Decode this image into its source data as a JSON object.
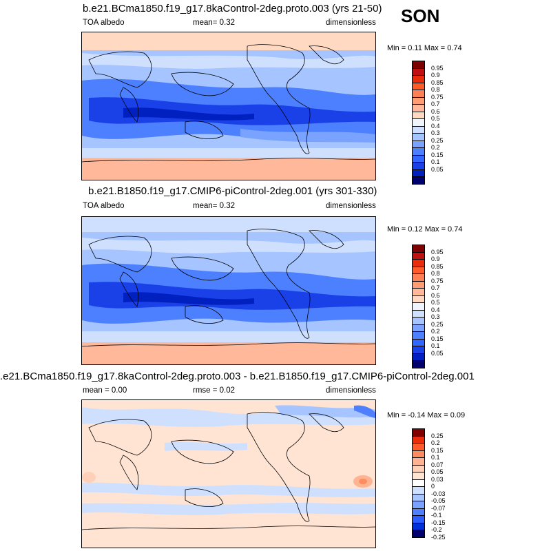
{
  "season": "SON",
  "colors": {
    "abs": [
      "#00006e",
      "#0020c0",
      "#1a40e8",
      "#3366ff",
      "#4d80ff",
      "#7aa3ff",
      "#a6c4ff",
      "#cfe0ff",
      "#f0f4fb",
      "#ffd9c2",
      "#ffb899",
      "#ff9c73",
      "#ff8055",
      "#ff5a2a",
      "#e82c0c",
      "#c01010",
      "#800000"
    ],
    "diff": [
      "#00006e",
      "#0030d8",
      "#2a5cff",
      "#4d7fff",
      "#7aa3ff",
      "#a6c4ff",
      "#cfe0ff",
      "#ffffff",
      "#ffe4d4",
      "#ffd0b8",
      "#ffb393",
      "#ff8c5e",
      "#ff5a2a",
      "#e82c0c",
      "#800000"
    ]
  },
  "panels": [
    {
      "title": "b.e21.BCma1850.f19_g17.8kaControl-2deg.proto.003 (yrs 21-50)",
      "left_label": "TOA albedo",
      "center_label": "mean=   0.32",
      "right_label": "dimensionless",
      "minmax": "Min =   0.11 Max =   0.74",
      "colorbar": "abs"
    },
    {
      "title": "b.e21.B1850.f19_g17.CMIP6-piControl-2deg.001 (yrs 301-330)",
      "left_label": "TOA albedo",
      "center_label": "mean=   0.32",
      "right_label": "dimensionless",
      "minmax": "Min =   0.12 Max =   0.74",
      "colorbar": "abs"
    },
    {
      "title": ".e21.BCma1850.f19_g17.8kaControl-2deg.proto.003 - b.e21.B1850.f19_g17.CMIP6-piControl-2deg.001",
      "left_label": "mean =   0.00",
      "center_label": "rmse =   0.02",
      "right_label": "dimensionless",
      "minmax": "Min =  -0.14 Max =   0.09",
      "colorbar": "diff"
    }
  ],
  "colorbars": {
    "abs": [
      "0.95",
      "0.9",
      "0.85",
      "0.8",
      "0.75",
      "0.7",
      "0.6",
      "0.5",
      "0.4",
      "0.3",
      "0.25",
      "0.2",
      "0.15",
      "0.1",
      "0.05"
    ],
    "diff": [
      "0.25",
      "0.2",
      "0.15",
      "0.1",
      "0.07",
      "0.05",
      "0.03",
      "0",
      "-0.03",
      "-0.05",
      "-0.07",
      "-0.1",
      "-0.15",
      "-0.2",
      "-0.25"
    ]
  }
}
